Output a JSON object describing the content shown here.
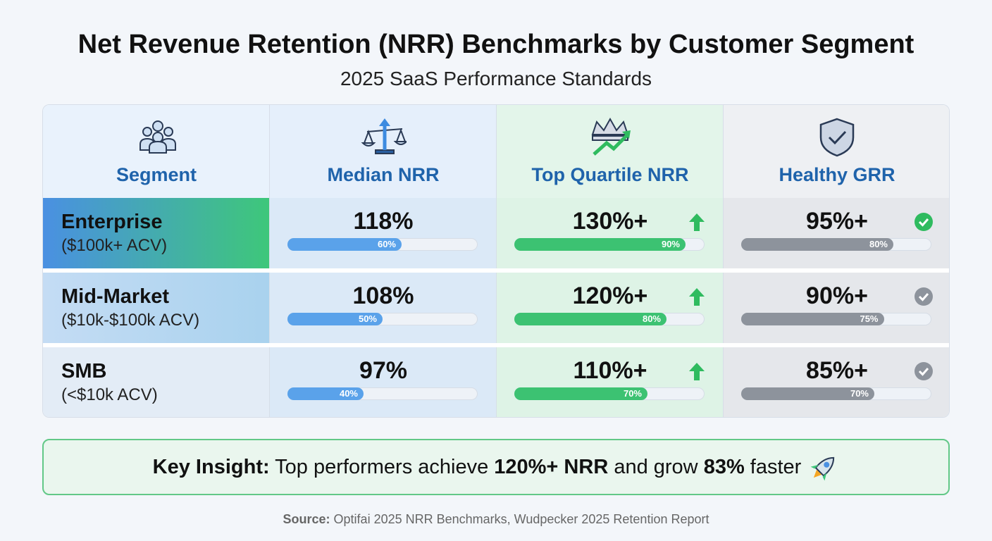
{
  "header": {
    "title": "Net Revenue Retention (NRR) Benchmarks by Customer Segment",
    "subtitle": "2025 SaaS Performance Standards"
  },
  "table": {
    "columns": [
      "Segment",
      "Median NRR",
      "Top Quartile NRR",
      "Healthy GRR"
    ],
    "rows": [
      {
        "name": "Enterprise",
        "detail": "($100k+ ACV)",
        "cells": [
          {
            "text": "118%",
            "bar": {
              "value": 60,
              "label": "60%"
            }
          },
          {
            "text": "130%+",
            "bar": {
              "value": 90,
              "label": "90%"
            }
          },
          {
            "text": "95%+",
            "bar": {
              "value": 80,
              "label": "80%"
            }
          }
        ]
      },
      {
        "name": "Mid-Market",
        "detail": "($10k-$100k ACV)",
        "cells": [
          {
            "text": "108%",
            "bar": {
              "value": 50,
              "label": "50%"
            }
          },
          {
            "text": "120%+",
            "bar": {
              "value": 80,
              "label": "80%"
            }
          },
          {
            "text": "90%+",
            "bar": {
              "value": 75,
              "label": "75%"
            }
          }
        ]
      },
      {
        "name": "SMB",
        "detail": "(<$10k ACV)",
        "cells": [
          {
            "text": "97%",
            "bar": {
              "value": 40,
              "label": "40%"
            }
          },
          {
            "text": "110%+",
            "bar": {
              "value": 70,
              "label": "70%"
            }
          },
          {
            "text": "85%+",
            "bar": {
              "value": 70,
              "label": "70%"
            }
          }
        ]
      }
    ]
  },
  "insight": [
    {
      "text": "Key Insight:",
      "bold": true
    },
    {
      "text": " Top performers achieve ",
      "bold": false
    },
    {
      "text": "120%+ NRR",
      "bold": true
    },
    {
      "text": " and grow ",
      "bold": false
    },
    {
      "text": "83%",
      "bold": true
    },
    {
      "text": " faster",
      "bold": false
    }
  ],
  "source": {
    "label": "Source:",
    "text": "Optifai 2025 NRR Benchmarks, Wudpecker 2025 Retention Report"
  }
}
